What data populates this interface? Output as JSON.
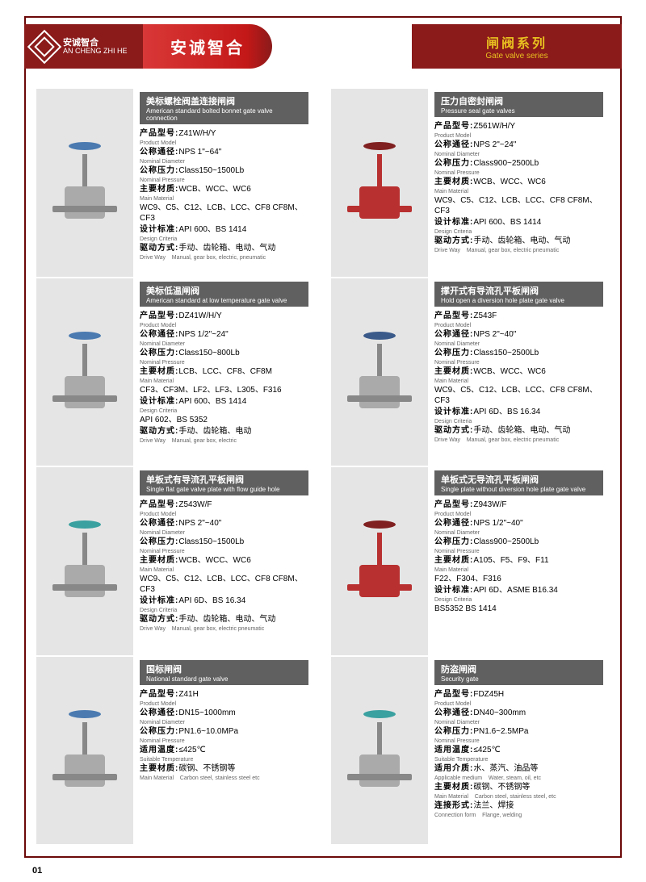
{
  "header": {
    "logo_cn": "安诚智合",
    "logo_en": "AN CHENG ZHI HE",
    "brand": "安诚智合",
    "series_cn": "闸阀系列",
    "series_en": "Gate valve series"
  },
  "labels": {
    "model_cn": "产品型号:",
    "model_en": "Product Model",
    "diameter_cn": "公称通径:",
    "diameter_en": "Nominal Diameter",
    "pressure_cn": "公称压力:",
    "pressure_en": "Nominal Pressure",
    "material_cn": "主要材质:",
    "material_en": "Main Material",
    "criteria_cn": "设计标准:",
    "criteria_en": "Design Criteria",
    "drive_cn": "驱动方式:",
    "drive_en": "Drive Way",
    "temp_cn": "适用温度:",
    "temp_en": "Suitable Temperature",
    "medium_cn": "适用介质:",
    "medium_en": "Applicable medium",
    "conn_cn": "连接形式:",
    "conn_en": "Connection form"
  },
  "left": [
    {
      "title_cn": "美标螺栓阀盖连接闸阀",
      "title_en": "American standard bolted bonnet gate valve connection",
      "model": "Z41W/H/Y",
      "diameter": "NPS 1\"~64\"",
      "pressure": "Class150~1500Lb",
      "material": "WCB、WCC、WC6",
      "material2": "WC9、C5、C12、LCB、LCC、CF8 CF8M、CF3",
      "criteria": "API 600、BS 1414",
      "drive": "手动、齿轮箱、电动、气动",
      "drive_en": "Manual, gear box, electric, pneumatic",
      "color": "blue"
    },
    {
      "title_cn": "美标低温闸阀",
      "title_en": "American standard at low temperature gate valve",
      "model": "DZ41W/H/Y",
      "diameter": "NPS 1/2\"~24\"",
      "pressure": "Class150~800Lb",
      "material": "LCB、LCC、CF8、CF8M",
      "material2": "CF3、CF3M、LF2、LF3、L305、F316",
      "criteria": "API 600、BS 1414",
      "criteria2": "API 602、BS 5352",
      "drive": "手动、齿轮箱、电动",
      "drive_en": "Manual, gear box, electric",
      "color": "blue"
    },
    {
      "title_cn": "单板式有导流孔平板闸阀",
      "title_en": "Single flat gate valve plate with flow guide hole",
      "model": "Z543W/F",
      "diameter": "NPS 2\"~40\"",
      "pressure": "Class150~1500Lb",
      "material": "WCB、WCC、WC6",
      "material2": "WC9、C5、C12、LCB、LCC、CF8 CF8M、CF3",
      "criteria": "API 6D、BS 16.34",
      "drive": "手动、齿轮箱、电动、气动",
      "drive_en": "Manual, gear box, electric pneumatic",
      "color": "teal"
    },
    {
      "title_cn": "国标闸阀",
      "title_en": "National standard gate valve",
      "model": "Z41H",
      "diameter": "DN15~1000mm",
      "pressure": "PN1.6~10.0MPa",
      "temp": "≤425℃",
      "material": "碳钢、不锈钢等",
      "material_en": "Carbon steel, stainless steel etc",
      "color": "blue"
    }
  ],
  "right": [
    {
      "title_cn": "压力自密封闸阀",
      "title_en": "Pressure seal gate valves",
      "model": "Z561W/H/Y",
      "diameter": "NPS 2\"~24\"",
      "pressure": "Class900~2500Lb",
      "material": "WCB、WCC、WC6",
      "material2": "WC9、C5、C12、LCB、LCC、CF8 CF8M、CF3",
      "criteria": "API 600、BS 1414",
      "drive": "手动、齿轮箱、电动、气动",
      "drive_en": "Manual, gear box, electric pneumatic",
      "color": "red"
    },
    {
      "title_cn": "撑开式有导流孔平板闸阀",
      "title_en": "Hold open a diversion hole plate gate valve",
      "model": "Z543F",
      "diameter": "NPS 2\"~40\"",
      "pressure": "Class150~2500Lb",
      "material": "WCB、WCC、WC6",
      "material2": "WC9、C5、C12、LCB、LCC、CF8 CF8M、CF3",
      "criteria": "API 6D、BS 16.34",
      "drive": "手动、齿轮箱、电动、气动",
      "drive_en": "Manual, gear box, electric pneumatic",
      "color": ""
    },
    {
      "title_cn": "单板式无导流孔平板闸阀",
      "title_en": "Single plate without diversion hole plate gate valve",
      "model": "Z943W/F",
      "diameter": "NPS 1/2\"~40\"",
      "pressure": "Class900~2500Lb",
      "material": "A105、F5、F9、F11",
      "material2": "F22、F304、F316",
      "criteria": "API 6D、ASME B16.34",
      "criteria2": "BS5352 BS 1414",
      "color": "red"
    },
    {
      "title_cn": "防盗闸阀",
      "title_en": "Security gate",
      "model": "FDZ45H",
      "diameter": "DN40~300mm",
      "pressure": "PN1.6~2.5MPa",
      "temp": "≤425℃",
      "medium": "水、蒸汽、油品等",
      "medium_en": "Water, steam, oil, etc",
      "material": "碳钢、不锈钢等",
      "material_en": "Carbon steel, stainless steel, etc",
      "conn": "法兰、焊接",
      "conn_en": "Flange, welding",
      "color": "teal"
    }
  ],
  "page_num": "01"
}
